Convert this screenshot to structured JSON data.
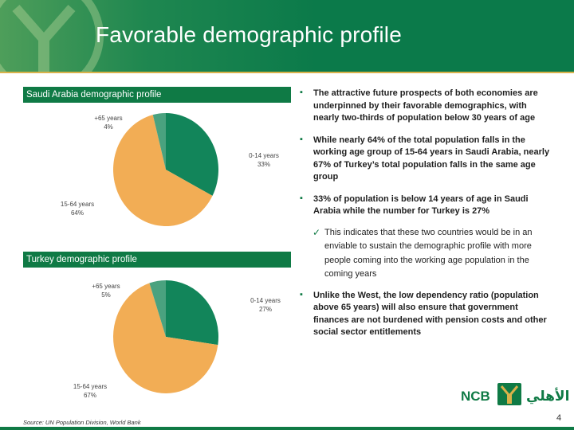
{
  "title": "Favorable demographic profile",
  "saudi": {
    "heading": "Saudi Arabia demographic profile",
    "slices": [
      {
        "name": "0-14 years",
        "pct_label": "33%",
        "value": 33,
        "color": "#12855a"
      },
      {
        "name": "15-64 years",
        "pct_label": "64%",
        "value": 64,
        "color": "#f2ad55"
      },
      {
        "name": "+65 years",
        "pct_label": "4%",
        "value": 4,
        "color": "#4aa27f"
      }
    ]
  },
  "turkey": {
    "heading": "Turkey demographic profile",
    "slices": [
      {
        "name": "0-14 years",
        "pct_label": "27%",
        "value": 27,
        "color": "#12855a"
      },
      {
        "name": "15-64 years",
        "pct_label": "67%",
        "value": 67,
        "color": "#f2ad55"
      },
      {
        "name": "+65 years",
        "pct_label": "5%",
        "value": 5,
        "color": "#4aa27f"
      }
    ]
  },
  "bullets": [
    "The attractive future prospects of both economies are underpinned by their favorable demographics, with nearly two-thirds of population below 30 years of age",
    "While nearly 64% of the total population falls in the working age group of 15-64 years in Saudi Arabia, nearly 67% of Turkey’s total population falls in the same age group",
    "33% of population is below 14 years of age in Saudi Arabia while the number for Turkey is 27%",
    "Unlike the West, the low dependency ratio (population above 65 years) will also ensure that government finances are not burdened with pension costs and other social sector entitlements"
  ],
  "sub_bullet": "This indicates that these two countries would be in an enviable to sustain the demographic profile with more people coming into the working age population in the coming years",
  "source": "Source: UN Population Division, World Bank",
  "page_number": "4",
  "logo": {
    "latin": "NCB",
    "arabic": "الأهلي"
  },
  "colors": {
    "brand_green": "#0f7a45",
    "accent_gold": "#d9b24a"
  }
}
